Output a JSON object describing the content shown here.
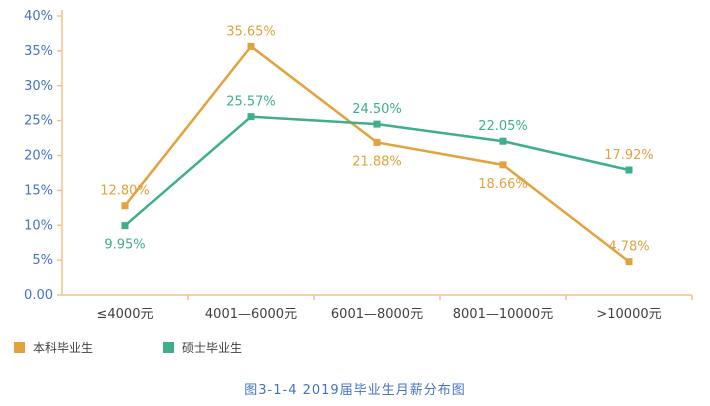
{
  "caption": "图3-1-4   2019届毕业生月薪分布图",
  "colors": {
    "axis": "#F0C386",
    "axis_label": "#4472C4",
    "x_label": "#404040",
    "caption": "#4472C4"
  },
  "chart_data": {
    "type": "line",
    "title": "图3-1-4 2019届毕业生月薪分布图",
    "categories": [
      "≤4000元",
      "4001—6000元",
      "6001—8000元",
      "8001—10000元",
      ">10000元"
    ],
    "series": [
      {
        "name": "本科毕业生",
        "color": "#E2A23C",
        "values": [
          12.8,
          35.65,
          21.88,
          18.66,
          4.78
        ],
        "labels": [
          "12.80%",
          "35.65%",
          "21.88%",
          "18.66%",
          "4.78%"
        ],
        "label_positions": [
          "above",
          "above",
          "below",
          "below",
          "above"
        ],
        "label_colors": [
          null,
          null,
          null,
          null,
          null
        ]
      },
      {
        "name": "硕士毕业生",
        "color": "#3EAE8C",
        "values": [
          9.95,
          25.57,
          24.5,
          22.05,
          17.92
        ],
        "labels": [
          "9.95%",
          "25.57%",
          "24.50%",
          "22.05%",
          "17.92%"
        ],
        "label_positions": [
          "below",
          "above",
          "above",
          "above",
          "above"
        ],
        "label_colors": [
          null,
          null,
          null,
          null,
          "#E2A23C"
        ]
      }
    ],
    "ylim": [
      0,
      40
    ],
    "y_ticks": [
      {
        "value": 0,
        "label": "0.00"
      },
      {
        "value": 5,
        "label": "5%"
      },
      {
        "value": 10,
        "label": "10%"
      },
      {
        "value": 15,
        "label": "15%"
      },
      {
        "value": 20,
        "label": "20%"
      },
      {
        "value": 25,
        "label": "25%"
      },
      {
        "value": 30,
        "label": "30%"
      },
      {
        "value": 35,
        "label": "35%"
      },
      {
        "value": 40,
        "label": "40%"
      }
    ],
    "grid": false,
    "legend_position": "bottom-left"
  }
}
